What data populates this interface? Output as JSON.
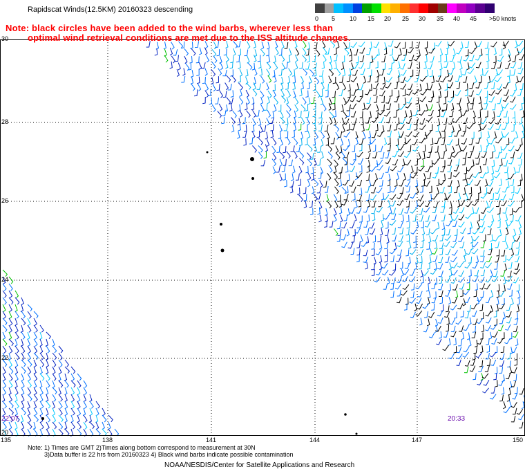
{
  "title": "Rapidscat Winds(12.5KM) 20160323 descending",
  "note_red_line1": "Note: black circles have been added to the wind barbs, wherever less than",
  "note_red_line2": "optimal wind retrieval conditions are met due to the ISS altitude changes.",
  "colorbar": {
    "colors": [
      "#404040",
      "#8c8c8c",
      "#00c8ff",
      "#0070ff",
      "#0020c0",
      "#00a000",
      "#00ff00",
      "#ffff00",
      "#ffc000",
      "#ff8000",
      "#ff4040",
      "#ff0000",
      "#c00000",
      "#8b4513",
      "#ff00ff",
      "#c000c0",
      "#8000c0",
      "#400080",
      "#200060"
    ],
    "labels": [
      "0",
      "5",
      "10",
      "15",
      "20",
      "25",
      "30",
      "35",
      "40",
      "45",
      ">50 knots"
    ]
  },
  "map": {
    "lat_labels": [
      "30",
      "28",
      "26",
      "24",
      "22",
      "20"
    ],
    "lon_labels": [
      "135",
      "138",
      "141",
      "144",
      "147",
      "150"
    ],
    "time_left": "22:07",
    "time_right": "20:33"
  },
  "footnote_line1": "Note: 1) Times are GMT 2)Times along bottom correspond to measurement at 30N",
  "footnote_line2": "3)Data buffer is 22 hrs from 20160323 4) Black wind barbs indicate possible contamination",
  "credit": "NOAA/NESDIS/Center for Satellite Applications and Research"
}
